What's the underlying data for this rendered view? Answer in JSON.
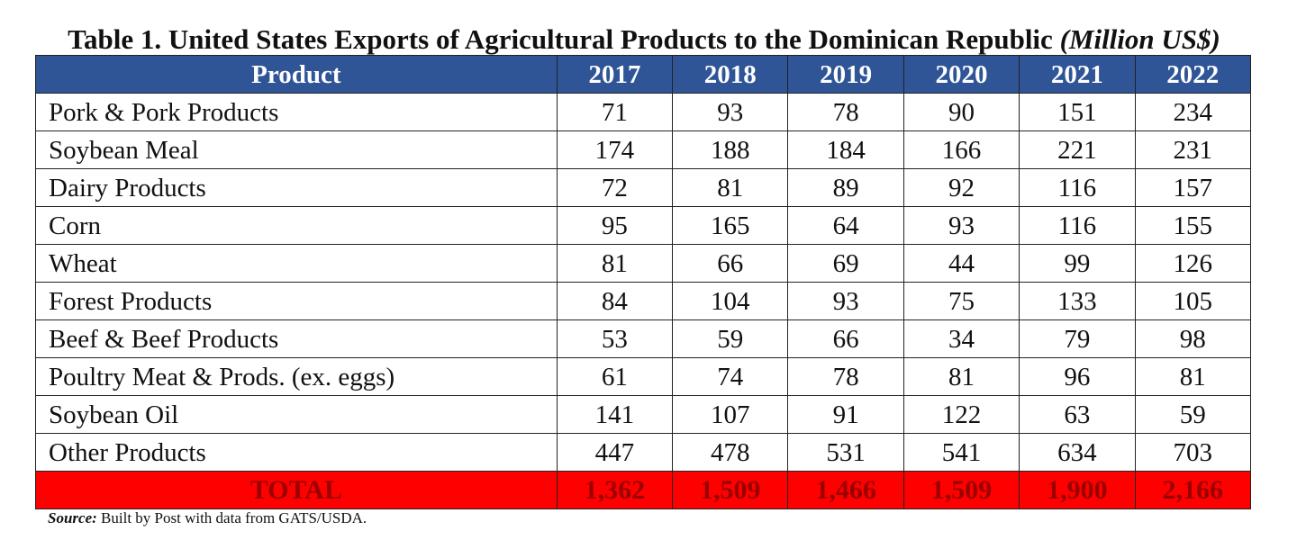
{
  "document": {
    "title": "Table 1. United States Exports of Agricultural Products to the Dominican Republic",
    "title_units": "(Million US$)",
    "header_color": "#2F5597",
    "total_row_color": "#FF0000"
  },
  "table": {
    "columns": [
      "Product",
      "2017",
      "2018",
      "2019",
      "2020",
      "2021",
      "2022"
    ],
    "rows": [
      {
        "product": "Pork & Pork Products",
        "values": [
          "71",
          "93",
          "78",
          "90",
          "151",
          "234"
        ]
      },
      {
        "product": "Soybean Meal",
        "values": [
          "174",
          "188",
          "184",
          "166",
          "221",
          "231"
        ]
      },
      {
        "product": "Dairy Products",
        "values": [
          "72",
          "81",
          "89",
          "92",
          "116",
          "157"
        ]
      },
      {
        "product": "Corn",
        "values": [
          "95",
          "165",
          "64",
          "93",
          "116",
          "155"
        ]
      },
      {
        "product": "Wheat",
        "values": [
          "81",
          "66",
          "69",
          "44",
          "99",
          "126"
        ]
      },
      {
        "product": "Forest Products",
        "values": [
          "84",
          "104",
          "93",
          "75",
          "133",
          "105"
        ]
      },
      {
        "product": "Beef & Beef Products",
        "values": [
          "53",
          "59",
          "66",
          "34",
          "79",
          "98"
        ]
      },
      {
        "product": "Poultry Meat & Prods. (ex. eggs)",
        "values": [
          "61",
          "74",
          "78",
          "81",
          "96",
          "81"
        ]
      },
      {
        "product": "Soybean Oil",
        "values": [
          "141",
          "107",
          "91",
          "122",
          "63",
          "59"
        ]
      },
      {
        "product": "Other Products",
        "values": [
          "447",
          "478",
          "531",
          "541",
          "634",
          "703"
        ]
      }
    ],
    "total": {
      "label": "TOTAL",
      "values": [
        "1,362",
        "1,509",
        "1,466",
        "1,509",
        "1,900",
        "2,166"
      ]
    }
  },
  "source": {
    "label": "Source:",
    "text": " Built by Post with data from GATS/USDA."
  }
}
